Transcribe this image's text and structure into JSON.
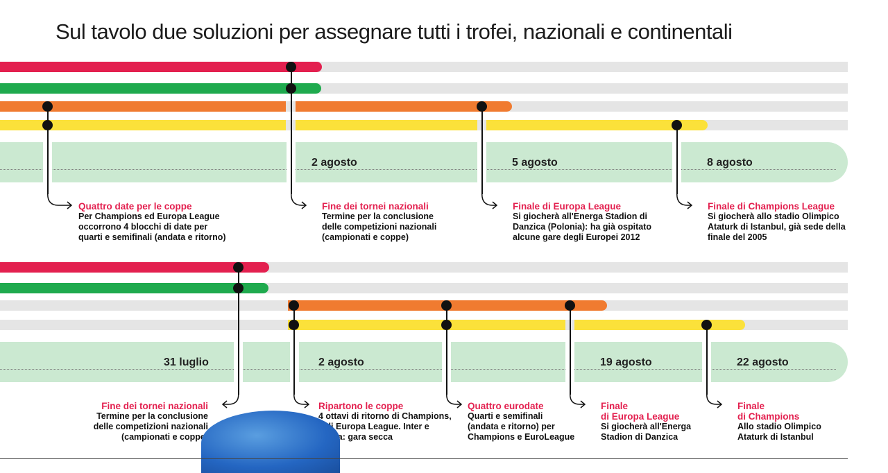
{
  "title": "Sul tavolo due soluzioni per assegnare tutti i trofei, nazionali e continentali",
  "colors": {
    "red": "#e3204f",
    "green": "#1faa4e",
    "orange": "#f07b30",
    "yellow": "#fbe13a",
    "track": "#e5e5e5",
    "band": "#cbe9d1",
    "accent_text": "#e3204f"
  },
  "scenario1": {
    "dates": [
      "2 agosto",
      "5 agosto",
      "8 agosto"
    ],
    "annotations": [
      {
        "head": "Quattro date per le coppe",
        "lines": [
          "Per Champions ed Europa League",
          "occorrono 4 blocchi di date per",
          "quarti e semifinali (andata e ritorno)"
        ]
      },
      {
        "head": "Fine dei tornei nazionali",
        "lines": [
          "Termine per la conclusione",
          "delle competizioni nazionali",
          "(campionati e coppe)"
        ]
      },
      {
        "head": "Finale di Europa League",
        "lines": [
          "Si giocherà all'Energa Stadion di",
          "Danzica (Polonia): ha già ospitato",
          "alcune gare degli Europei 2012"
        ]
      },
      {
        "head": "Finale di Champions League",
        "lines": [
          "Si giocherà allo stadio Olimpico",
          "Ataturk di Istanbul, già sede della",
          "finale del 2005"
        ]
      }
    ]
  },
  "scenario2": {
    "dates": [
      "31 luglio",
      "2 agosto",
      "19 agosto",
      "22 agosto"
    ],
    "annotations": [
      {
        "head": "Fine dei tornei nazionali",
        "lines": [
          "Termine per la conclusione",
          "delle competizioni nazionali",
          "(campionati e coppe)"
        ]
      },
      {
        "head": "Ripartono le coppe",
        "lines": [
          "4 ottavi di ritorno di Champions,",
          "6 di Europa League. Inter e",
          "Roma: gara secca"
        ]
      },
      {
        "head": "Quattro eurodate",
        "lines": [
          "Quarti e semifinali",
          "(andata e ritorno) per",
          "Champions e EuroLeague"
        ]
      },
      {
        "head": "Finale",
        "head2": "di Europa League",
        "lines": [
          "Si giocherà all'Energa",
          "Stadion di Danzica"
        ]
      },
      {
        "head": "Finale",
        "head2": "di Champions",
        "lines": [
          "Allo stadio Olimpico",
          "Ataturk di Istanbul"
        ]
      }
    ]
  }
}
